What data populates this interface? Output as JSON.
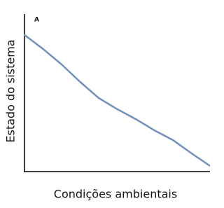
{
  "chart_data": {
    "type": "line",
    "panel_label": "A",
    "xlabel": "Condições ambientais",
    "ylabel": "Estado do sistema",
    "x": [
      0,
      0.1,
      0.2,
      0.3,
      0.4,
      0.5,
      0.6,
      0.7,
      0.8,
      0.9,
      1.0
    ],
    "series": [
      {
        "color": "#7090bd",
        "values": [
          0.867,
          0.778,
          0.68,
          0.569,
          0.467,
          0.396,
          0.333,
          0.262,
          0.2,
          0.116,
          0.036
        ]
      }
    ],
    "xlim": [
      0,
      1
    ],
    "ylim": [
      0,
      1
    ]
  }
}
